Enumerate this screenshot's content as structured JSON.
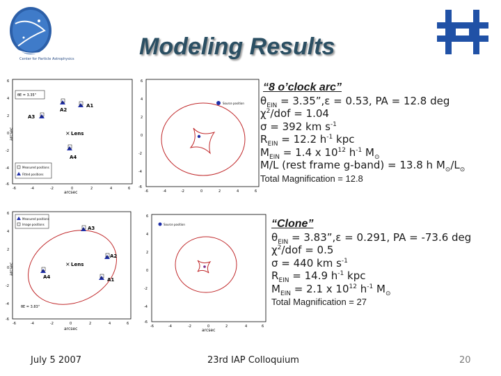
{
  "slide": {
    "title": "Modeling Results",
    "logo_text": "Center for Particle Astrophysics",
    "page_number": "20"
  },
  "footer": {
    "date": "July 5 2007",
    "event": "23rd IAP Colloquium"
  },
  "arc8": {
    "heading": "“8 o’clock arc”",
    "theta": "θ",
    "theta_sub": "EIN",
    "theta_rest": " = 3.35”,ε = 0.53, PA = 12.8 deg",
    "chi_a": "χ",
    "chi_sup": "2",
    "chi_b": "/dof = 1.04",
    "sigma_a": "σ = 392 km s",
    "sigma_sup": "-1",
    "r_a": "R",
    "r_sub": "EIN",
    "r_b": " = 12.2 h",
    "r_sup": "-1",
    "r_c": " kpc",
    "m_a": "M",
    "m_sub": "EIN",
    "m_b": " = 1.4 x 10",
    "m_sup1": "12",
    "m_c": " h",
    "m_sup2": "-1",
    "m_d": " M",
    "m_sun": "⊙",
    "ml_a": "M/L (rest frame g-band) = 13.8 h M",
    "ml_sun1": "⊙",
    "ml_b": "/L",
    "ml_sun2": "⊙",
    "total": "Total Magnification = 12.8"
  },
  "clone": {
    "heading": "“Clone”",
    "theta": "θ",
    "theta_sub": "EIN",
    "theta_rest": " = 3.83”,ε = 0.291, PA = -73.6 deg",
    "chi_a": "χ",
    "chi_sup": "2",
    "chi_b": "/dof = 0.5",
    "sigma_a": "σ = 440 km s",
    "sigma_sup": "-1",
    "r_a": "R",
    "r_sub": "EIN",
    "r_b": " = 14.9 h",
    "r_sup": "-1",
    "r_c": " kpc",
    "m_a": "M",
    "m_sub": "EIN",
    "m_b": " = 2.1 x 10",
    "m_sup1": "12",
    "m_c": " h",
    "m_sup2": "-1",
    "m_d": " M",
    "m_sun": "⊙",
    "total": "Total Magnification = 27"
  },
  "plots": {
    "axis_label": "arcsec",
    "ticks": [
      "-6",
      "-4",
      "-2",
      "0",
      "2",
      "4",
      "6"
    ],
    "p1": {
      "theta_label": "θE = 3.35\"",
      "images": [
        "A1",
        "A2",
        "A3",
        "A4"
      ],
      "lens": "Lens",
      "legend": [
        "Measured positions",
        "Fitted positions"
      ]
    },
    "p2": {
      "legend": "Source position"
    },
    "p3": {
      "theta_label": "θE = 3.83\"",
      "images": [
        "A1",
        "A2",
        "A3",
        "A4"
      ],
      "lens": "Lens",
      "legend": [
        "Measured positions",
        "Image positions"
      ]
    },
    "p4": {
      "legend": "Source position"
    }
  }
}
